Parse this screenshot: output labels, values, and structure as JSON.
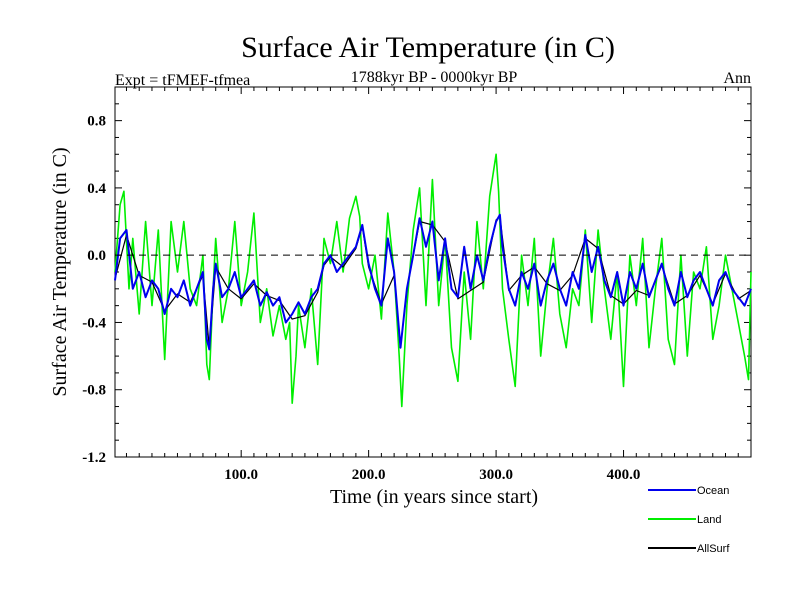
{
  "chart_data": {
    "type": "line",
    "title": "Surface Air Temperature (in C)",
    "subtitle": "1788kyr BP - 0000kyr BP",
    "left_annotation": "Expt = tFMEF-tfmea",
    "right_annotation": "Ann",
    "xlabel": "Time (in years since start)",
    "ylabel": "Surface Air Temperature (in C)",
    "xlim": [
      1,
      500
    ],
    "ylim": [
      -1.2,
      1.0
    ],
    "x_ticks": [
      100,
      200,
      300,
      400
    ],
    "x_tick_labels": [
      "100.0",
      "200.0",
      "300.0",
      "400.0"
    ],
    "y_ticks": [
      0.8,
      0.4,
      0.0,
      -0.4,
      -0.8,
      -1.2
    ],
    "y_tick_labels": [
      "0.8",
      "0.4",
      "0.0",
      "-0.4",
      "-0.8",
      "-1.2"
    ],
    "reference_line": 0.0,
    "legend_position": "bottom-right, outside plot",
    "series": [
      {
        "name": "Land",
        "color": "#00ee00",
        "x": [
          1,
          5,
          8,
          12,
          15,
          20,
          25,
          30,
          35,
          40,
          45,
          50,
          55,
          60,
          65,
          70,
          73,
          75,
          78,
          80,
          85,
          90,
          95,
          100,
          105,
          110,
          115,
          120,
          125,
          130,
          135,
          138,
          140,
          143,
          145,
          150,
          155,
          160,
          165,
          170,
          175,
          180,
          185,
          190,
          193,
          195,
          200,
          205,
          210,
          215,
          220,
          224,
          226,
          230,
          235,
          240,
          245,
          250,
          255,
          260,
          265,
          270,
          275,
          280,
          285,
          290,
          295,
          300,
          302,
          305,
          310,
          315,
          320,
          325,
          330,
          335,
          340,
          345,
          350,
          355,
          360,
          365,
          370,
          375,
          380,
          385,
          390,
          395,
          400,
          405,
          410,
          415,
          420,
          425,
          430,
          435,
          440,
          445,
          450,
          455,
          460,
          465,
          470,
          475,
          480,
          485,
          490,
          495,
          498,
          500
        ],
        "values": [
          -0.1,
          0.3,
          0.38,
          -0.2,
          0.1,
          -0.35,
          0.2,
          -0.3,
          0.15,
          -0.62,
          0.2,
          -0.1,
          0.2,
          -0.2,
          -0.3,
          0.0,
          -0.65,
          -0.74,
          -0.2,
          0.1,
          -0.4,
          -0.2,
          0.2,
          -0.3,
          -0.1,
          0.25,
          -0.4,
          -0.2,
          -0.48,
          -0.3,
          -0.5,
          -0.4,
          -0.88,
          -0.6,
          -0.3,
          -0.55,
          -0.2,
          -0.65,
          0.1,
          -0.05,
          0.2,
          -0.1,
          0.22,
          0.35,
          0.23,
          -0.05,
          -0.2,
          0.0,
          -0.38,
          0.25,
          -0.1,
          -0.6,
          -0.9,
          -0.3,
          0.15,
          0.4,
          -0.3,
          0.45,
          -0.3,
          0.1,
          -0.55,
          -0.75,
          -0.1,
          -0.5,
          0.2,
          -0.2,
          0.35,
          0.6,
          0.38,
          -0.2,
          -0.5,
          -0.78,
          0.0,
          -0.3,
          0.1,
          -0.6,
          -0.2,
          0.1,
          -0.35,
          -0.55,
          -0.2,
          -0.3,
          0.15,
          -0.4,
          0.15,
          -0.2,
          -0.5,
          -0.1,
          -0.78,
          0.0,
          -0.3,
          0.1,
          -0.55,
          -0.2,
          0.1,
          -0.5,
          -0.65,
          0.0,
          -0.6,
          -0.1,
          -0.2,
          0.05,
          -0.5,
          -0.3,
          0.0,
          -0.2,
          -0.4,
          -0.6,
          -0.74,
          -0.1
        ]
      },
      {
        "name": "Ocean",
        "color": "#0000ee",
        "x": [
          1,
          5,
          10,
          15,
          20,
          25,
          30,
          35,
          40,
          45,
          50,
          55,
          60,
          65,
          70,
          73,
          75,
          78,
          80,
          85,
          90,
          95,
          100,
          105,
          110,
          115,
          120,
          125,
          130,
          135,
          140,
          145,
          150,
          155,
          160,
          165,
          170,
          175,
          180,
          185,
          190,
          195,
          200,
          205,
          210,
          215,
          220,
          225,
          230,
          235,
          240,
          245,
          250,
          255,
          260,
          265,
          270,
          275,
          280,
          285,
          290,
          295,
          300,
          303,
          305,
          310,
          315,
          320,
          325,
          330,
          335,
          340,
          345,
          350,
          355,
          360,
          365,
          370,
          375,
          380,
          385,
          390,
          395,
          400,
          405,
          410,
          415,
          420,
          425,
          430,
          435,
          440,
          445,
          450,
          455,
          460,
          465,
          470,
          475,
          480,
          485,
          490,
          495,
          500
        ],
        "values": [
          -0.15,
          0.1,
          0.15,
          -0.2,
          -0.1,
          -0.25,
          -0.15,
          -0.2,
          -0.35,
          -0.2,
          -0.25,
          -0.15,
          -0.3,
          -0.2,
          -0.1,
          -0.5,
          -0.56,
          -0.2,
          -0.05,
          -0.25,
          -0.2,
          -0.1,
          -0.25,
          -0.2,
          -0.15,
          -0.3,
          -0.22,
          -0.3,
          -0.25,
          -0.4,
          -0.35,
          -0.28,
          -0.35,
          -0.25,
          -0.2,
          -0.05,
          0.0,
          -0.1,
          -0.05,
          0.0,
          0.05,
          0.18,
          -0.05,
          -0.2,
          -0.3,
          0.1,
          -0.1,
          -0.55,
          -0.2,
          0.0,
          0.22,
          0.05,
          0.2,
          -0.15,
          0.1,
          -0.2,
          -0.25,
          0.05,
          -0.2,
          0.0,
          -0.15,
          0.05,
          0.2,
          0.24,
          0.05,
          -0.2,
          -0.3,
          -0.1,
          -0.2,
          -0.05,
          -0.3,
          -0.15,
          -0.05,
          -0.2,
          -0.3,
          -0.1,
          -0.2,
          0.12,
          -0.1,
          0.05,
          -0.15,
          -0.25,
          -0.1,
          -0.3,
          -0.1,
          -0.2,
          -0.05,
          -0.25,
          -0.15,
          -0.05,
          -0.2,
          -0.3,
          -0.1,
          -0.25,
          -0.15,
          -0.1,
          -0.2,
          -0.3,
          -0.15,
          -0.1,
          -0.2,
          -0.25,
          -0.3,
          -0.2
        ]
      },
      {
        "name": "AllSurf",
        "color": "#000000",
        "x": [
          1,
          10,
          20,
          30,
          40,
          50,
          60,
          70,
          75,
          80,
          90,
          100,
          110,
          120,
          130,
          140,
          150,
          160,
          165,
          170,
          180,
          190,
          195,
          200,
          210,
          220,
          225,
          230,
          240,
          250,
          260,
          270,
          280,
          290,
          300,
          303,
          310,
          320,
          330,
          340,
          350,
          360,
          370,
          380,
          390,
          400,
          410,
          420,
          430,
          440,
          450,
          460,
          470,
          480,
          490,
          500
        ],
        "values": [
          -0.14,
          0.12,
          -0.12,
          -0.16,
          -0.33,
          -0.23,
          -0.28,
          -0.12,
          -0.55,
          -0.07,
          -0.2,
          -0.26,
          -0.17,
          -0.24,
          -0.27,
          -0.38,
          -0.36,
          -0.22,
          -0.06,
          -0.01,
          -0.07,
          0.04,
          0.17,
          -0.07,
          -0.29,
          -0.12,
          -0.55,
          -0.2,
          0.2,
          0.18,
          0.08,
          -0.26,
          -0.21,
          -0.16,
          0.21,
          0.23,
          -0.21,
          -0.12,
          -0.07,
          -0.17,
          -0.21,
          -0.12,
          0.1,
          0.04,
          -0.24,
          -0.29,
          -0.21,
          -0.24,
          -0.06,
          -0.29,
          -0.24,
          -0.12,
          -0.29,
          -0.11,
          -0.26,
          -0.21
        ]
      }
    ]
  }
}
